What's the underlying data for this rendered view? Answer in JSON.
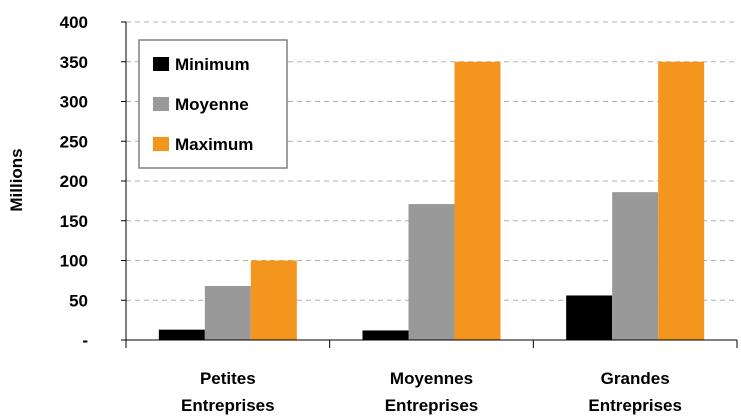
{
  "chart_data": {
    "type": "bar",
    "title": "",
    "xlabel": "",
    "ylabel": "Millions",
    "ylim": [
      0,
      400
    ],
    "yticks": [
      0,
      50,
      100,
      150,
      200,
      250,
      300,
      350,
      400
    ],
    "ytick_labels": [
      "-",
      "50",
      "100",
      "150",
      "200",
      "250",
      "300",
      "350",
      "400"
    ],
    "categories": [
      [
        "Petites",
        "Entreprises"
      ],
      [
        "Moyennes",
        "Entreprises"
      ],
      [
        "Grandes",
        "Entreprises"
      ]
    ],
    "series": [
      {
        "name": "Minimum",
        "color": "#000000",
        "values": [
          13,
          12,
          56
        ]
      },
      {
        "name": "Moyenne",
        "color": "#999999",
        "values": [
          68,
          171,
          186
        ]
      },
      {
        "name": "Maximum",
        "color": "#f4961e",
        "values": [
          100,
          350,
          350
        ]
      }
    ],
    "grid": true,
    "legend_position": "top-left"
  }
}
